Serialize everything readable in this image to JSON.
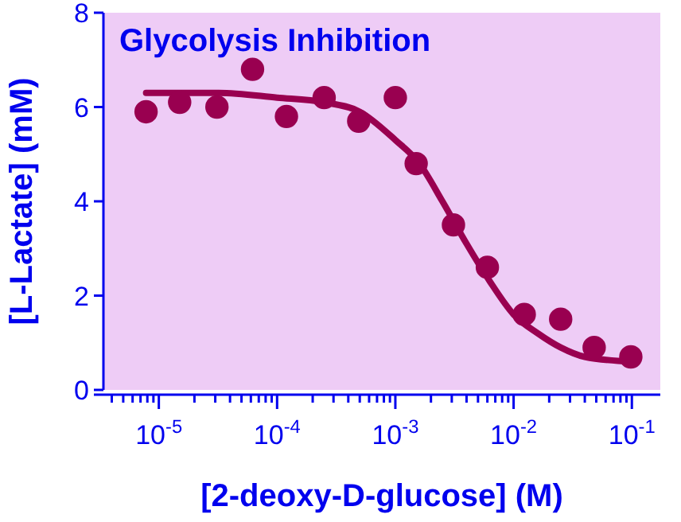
{
  "chart_data": {
    "type": "scatter",
    "title": "Glycolysis Inhibition",
    "xlabel": "[2-deoxy-D-glucose] (M)",
    "ylabel": "[L-Lactate] (mM)",
    "log": "x",
    "grid": false,
    "xlim": [
      3.4e-06,
      0.174
    ],
    "ylim": [
      0,
      8
    ],
    "yticks": [
      0,
      2,
      4,
      6,
      8
    ],
    "xticks": [
      {
        "value": 4e-06,
        "label": null
      },
      {
        "value": 5e-06,
        "label": null
      },
      {
        "value": 6e-06,
        "label": null
      },
      {
        "value": 7e-06,
        "label": null
      },
      {
        "value": 8e-06,
        "label": null
      },
      {
        "value": 9e-06,
        "label": null
      },
      {
        "value": 1e-05,
        "label": "10$^{-5}$"
      },
      {
        "value": 2e-05,
        "label": null
      },
      {
        "value": 3e-05,
        "label": null
      },
      {
        "value": 4e-05,
        "label": null
      },
      {
        "value": 5e-05,
        "label": null
      },
      {
        "value": 6e-05,
        "label": null
      },
      {
        "value": 7e-05,
        "label": null
      },
      {
        "value": 8e-05,
        "label": null
      },
      {
        "value": 9e-05,
        "label": null
      },
      {
        "value": 0.0001,
        "label": "10$^{-4}$"
      },
      {
        "value": 0.0002,
        "label": null
      },
      {
        "value": 0.0003,
        "label": null
      },
      {
        "value": 0.0004,
        "label": null
      },
      {
        "value": 0.0005,
        "label": null
      },
      {
        "value": 0.0006,
        "label": null
      },
      {
        "value": 0.0007,
        "label": null
      },
      {
        "value": 0.0008,
        "label": null
      },
      {
        "value": 0.0009,
        "label": null
      },
      {
        "value": 0.001,
        "label": "10$^{-3}$"
      },
      {
        "value": 0.002,
        "label": null
      },
      {
        "value": 0.003,
        "label": null
      },
      {
        "value": 0.004,
        "label": null
      },
      {
        "value": 0.005,
        "label": null
      },
      {
        "value": 0.006,
        "label": null
      },
      {
        "value": 0.007,
        "label": null
      },
      {
        "value": 0.008,
        "label": null
      },
      {
        "value": 0.009,
        "label": null
      },
      {
        "value": 0.01,
        "label": "10$^{-2}$"
      },
      {
        "value": 0.02,
        "label": null
      },
      {
        "value": 0.03,
        "label": null
      },
      {
        "value": 0.04,
        "label": null
      },
      {
        "value": 0.05,
        "label": null
      },
      {
        "value": 0.06,
        "label": null
      },
      {
        "value": 0.07,
        "label": null
      },
      {
        "value": 0.08,
        "label": null
      },
      {
        "value": 0.09,
        "label": null
      },
      {
        "value": 0.1,
        "label": "10$^{-1}$"
      }
    ],
    "series": [
      {
        "marker": "circle",
        "color": "#990050",
        "x": [
          7.8e-06,
          1.5e-05,
          3.1e-05,
          6.2e-05,
          0.00012,
          0.00025,
          0.00049,
          0.001,
          0.0015,
          0.0031,
          0.006,
          0.0123,
          0.025,
          0.048,
          0.098
        ],
        "values": [
          5.9,
          6.1,
          6.0,
          6.8,
          5.8,
          6.2,
          5.7,
          6.2,
          4.8,
          3.5,
          2.6,
          1.6,
          1.5,
          0.9,
          0.7
        ]
      },
      {
        "type": "line",
        "marker": "none",
        "color": "#990050",
        "x": [
          7.8e-06,
          3.2e-05,
          0.0001,
          0.00025,
          0.0005,
          0.001,
          0.0016,
          0.0025,
          0.004,
          0.0063,
          0.01,
          0.016,
          0.025,
          0.04,
          0.098
        ],
        "values": [
          6.3,
          6.3,
          6.2,
          6.1,
          5.9,
          5.3,
          4.8,
          4.0,
          3.1,
          2.3,
          1.6,
          1.2,
          0.9,
          0.7,
          0.6
        ]
      }
    ]
  }
}
